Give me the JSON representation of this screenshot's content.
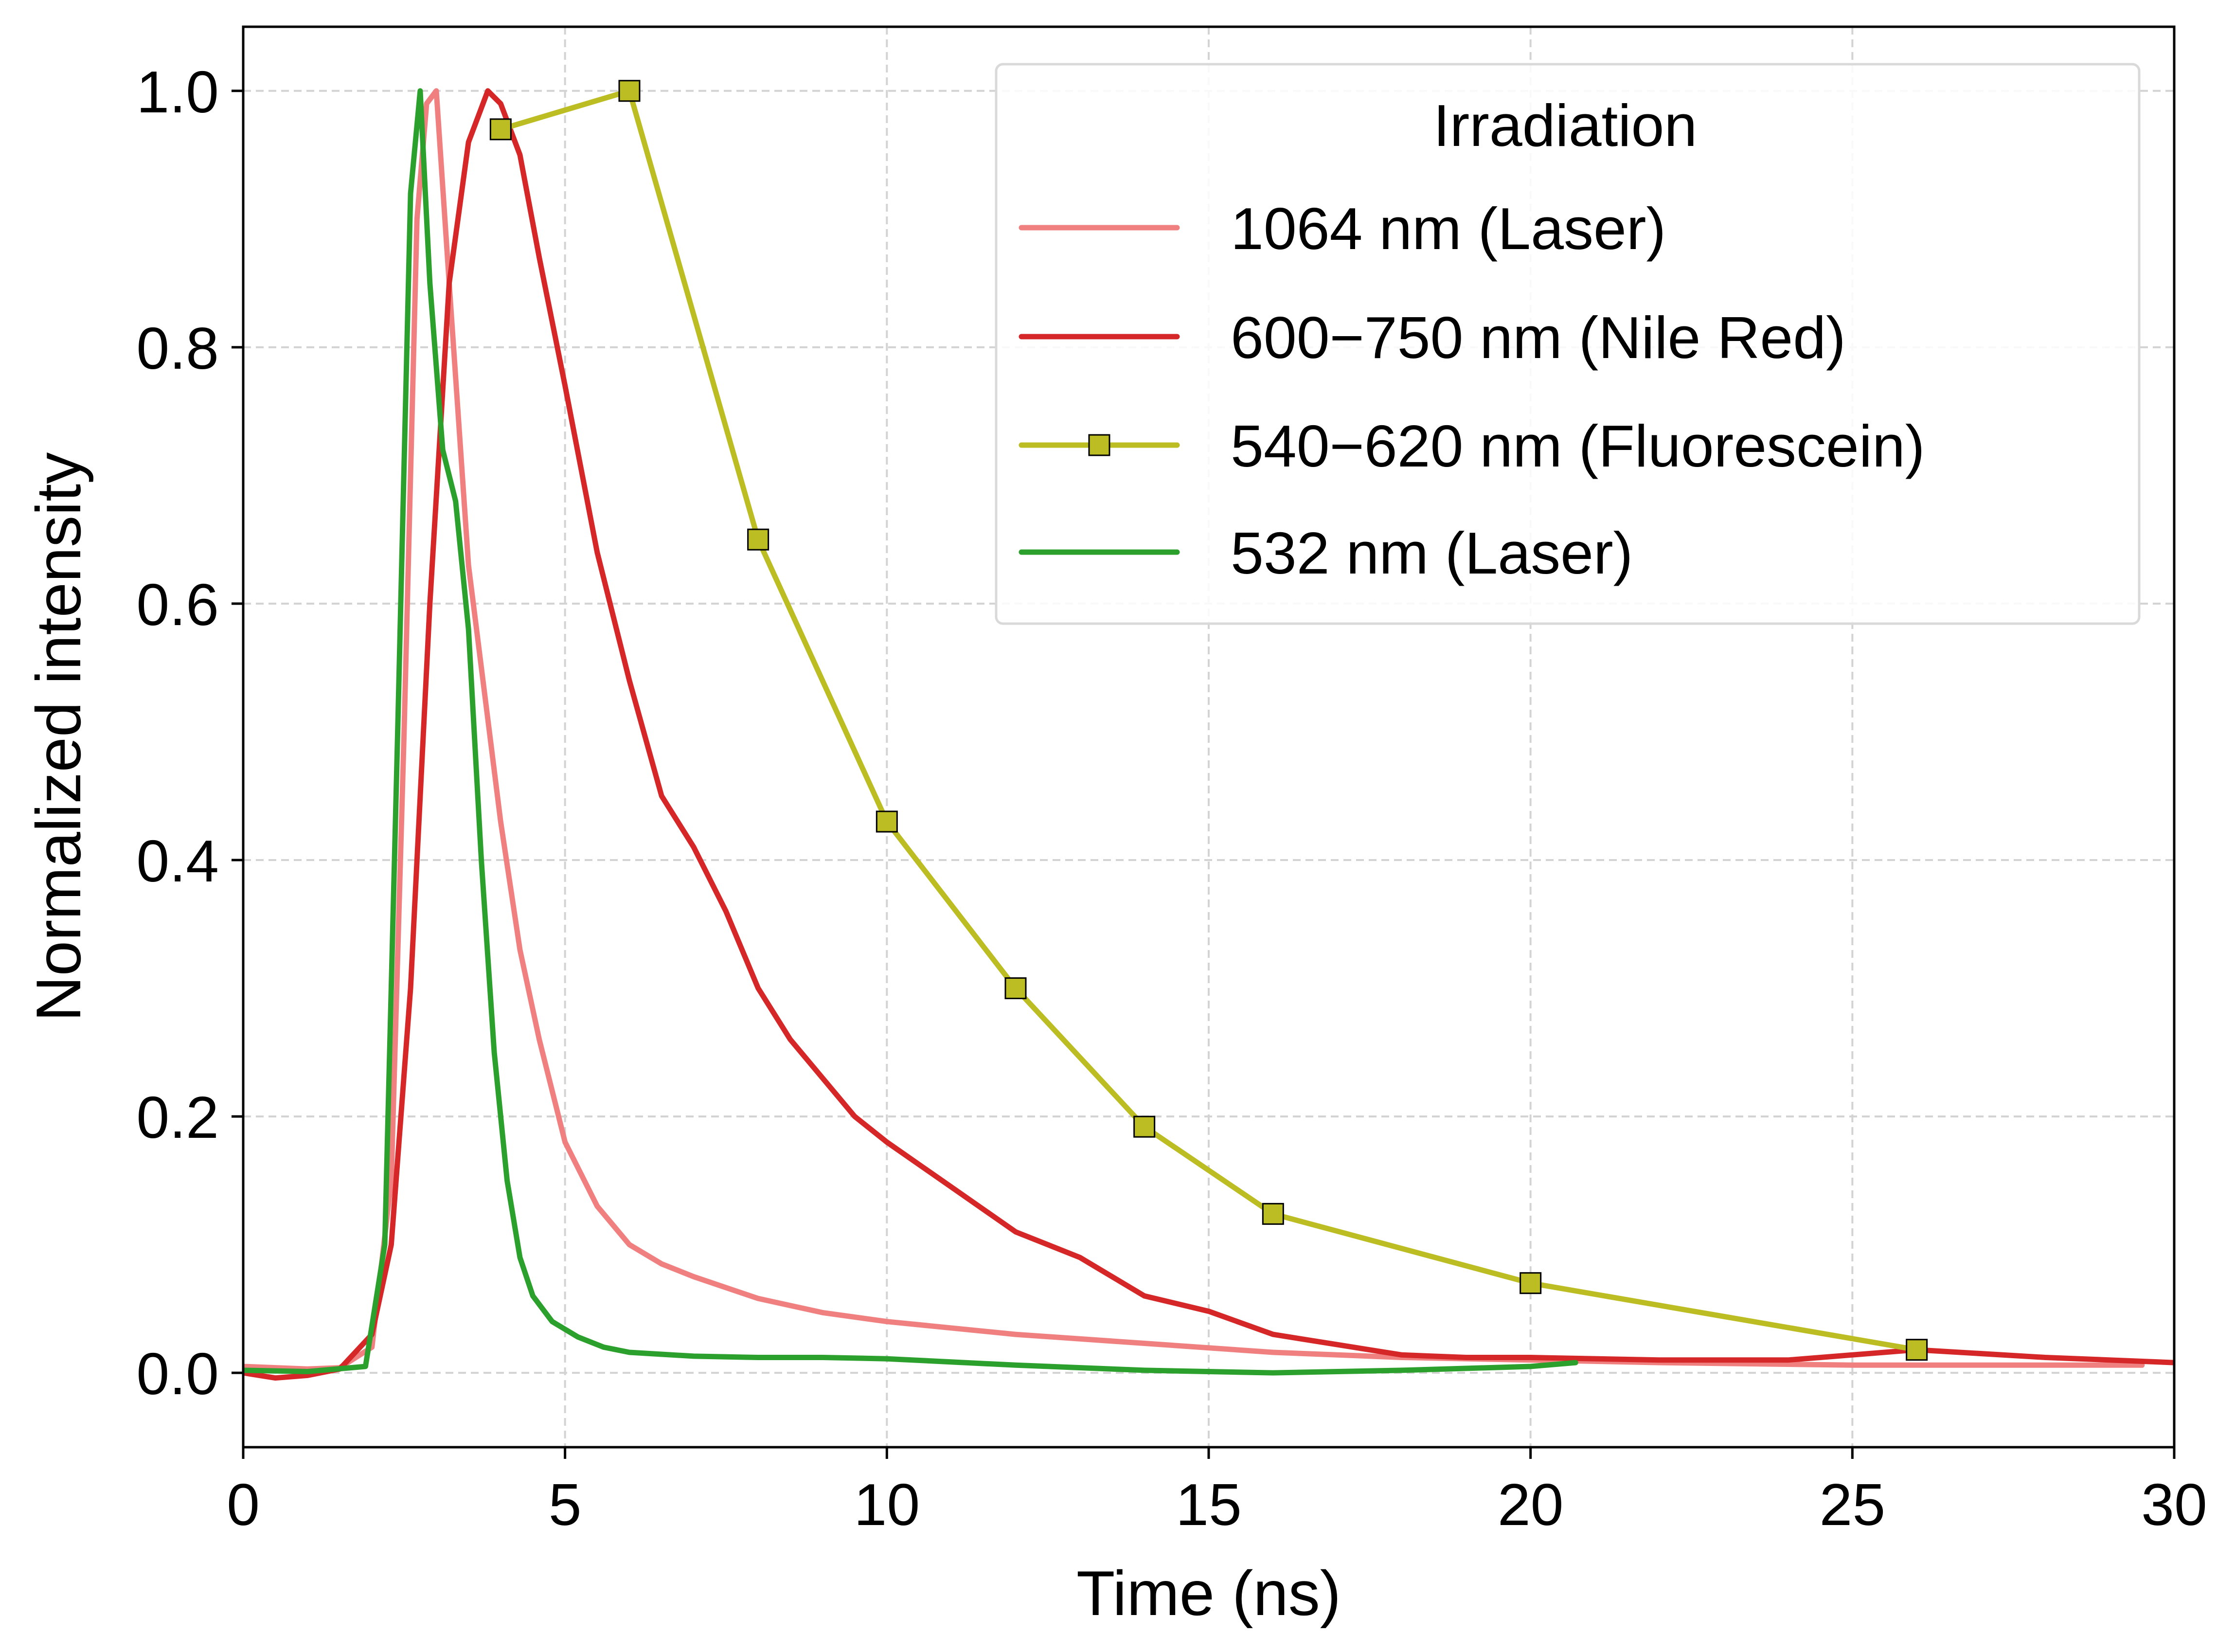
{
  "chart_data": {
    "type": "line",
    "title": "",
    "xlabel": "Time (ns)",
    "ylabel": "Normalized intensity",
    "xlim": [
      0,
      30
    ],
    "ylim": [
      -0.058,
      1.05
    ],
    "x_ticks": [
      0,
      5,
      10,
      15,
      20,
      25,
      30
    ],
    "x_tick_labels": [
      "0",
      "5",
      "10",
      "15",
      "20",
      "25",
      "30"
    ],
    "y_ticks": [
      0.0,
      0.2,
      0.4,
      0.6,
      0.8,
      1.0
    ],
    "y_tick_labels": [
      "0.0",
      "0.2",
      "0.4",
      "0.6",
      "0.8",
      "1.0"
    ],
    "grid": true,
    "legend": {
      "title": "Irradiation",
      "placement": "top-right"
    },
    "series": [
      {
        "name": "1064 nm (Laser)",
        "color": "#f08080",
        "marker": "none",
        "x": [
          0,
          1.0,
          1.5,
          2.0,
          2.3,
          2.5,
          2.7,
          2.85,
          3.0,
          3.2,
          3.5,
          3.8,
          4.0,
          4.3,
          4.6,
          5.0,
          5.5,
          6.0,
          6.5,
          7.0,
          8.0,
          9.0,
          10.0,
          12.0,
          14.0,
          16.0,
          18.0,
          20.0,
          22.0,
          25.0,
          29.5
        ],
        "y": [
          0.005,
          0.003,
          0.004,
          0.02,
          0.15,
          0.5,
          0.9,
          0.99,
          1.0,
          0.85,
          0.63,
          0.51,
          0.43,
          0.33,
          0.26,
          0.18,
          0.13,
          0.1,
          0.085,
          0.075,
          0.058,
          0.047,
          0.04,
          0.03,
          0.023,
          0.016,
          0.012,
          0.01,
          0.008,
          0.006,
          0.006
        ]
      },
      {
        "name": "600−750 nm (Nile Red)",
        "color": "#d62728",
        "marker": "none",
        "x": [
          0,
          0.5,
          1.0,
          1.5,
          2.0,
          2.3,
          2.6,
          2.9,
          3.2,
          3.5,
          3.8,
          4.0,
          4.3,
          4.6,
          5.0,
          5.5,
          6.0,
          6.5,
          7.0,
          7.5,
          8.0,
          8.5,
          9.0,
          9.5,
          10.0,
          11.0,
          12.0,
          13.0,
          14.0,
          15.0,
          16.0,
          17.0,
          18.0,
          19.0,
          20.0,
          22.0,
          24.0,
          26.0,
          28.0,
          30.0
        ],
        "y": [
          0.0,
          -0.004,
          -0.002,
          0.003,
          0.03,
          0.1,
          0.3,
          0.6,
          0.85,
          0.96,
          1.0,
          0.99,
          0.95,
          0.87,
          0.77,
          0.64,
          0.54,
          0.45,
          0.41,
          0.36,
          0.3,
          0.26,
          0.23,
          0.2,
          0.18,
          0.145,
          0.11,
          0.09,
          0.06,
          0.048,
          0.03,
          0.022,
          0.014,
          0.012,
          0.012,
          0.01,
          0.01,
          0.018,
          0.012,
          0.008
        ]
      },
      {
        "name": "540−620 nm (Fluorescein)",
        "color": "#bcbd22",
        "marker": "square",
        "x": [
          4,
          6,
          8,
          10,
          12,
          14,
          16,
          20,
          26
        ],
        "y": [
          0.97,
          1.0,
          0.65,
          0.43,
          0.3,
          0.192,
          0.124,
          0.07,
          0.018
        ]
      },
      {
        "name": "532 nm (Laser)",
        "color": "#2ca02c",
        "marker": "none",
        "x": [
          0,
          1.0,
          1.9,
          2.2,
          2.4,
          2.6,
          2.75,
          2.9,
          3.1,
          3.3,
          3.5,
          3.7,
          3.9,
          4.1,
          4.3,
          4.5,
          4.8,
          5.2,
          5.6,
          6.0,
          7.0,
          8.0,
          9.0,
          10.0,
          12.0,
          14.0,
          16.0,
          18.0,
          20.0,
          20.7
        ],
        "y": [
          0.002,
          0.001,
          0.005,
          0.1,
          0.5,
          0.92,
          1.0,
          0.85,
          0.72,
          0.68,
          0.58,
          0.4,
          0.25,
          0.15,
          0.09,
          0.06,
          0.04,
          0.028,
          0.02,
          0.016,
          0.013,
          0.012,
          0.012,
          0.011,
          0.006,
          0.002,
          0.0,
          0.002,
          0.005,
          0.008
        ]
      }
    ]
  }
}
